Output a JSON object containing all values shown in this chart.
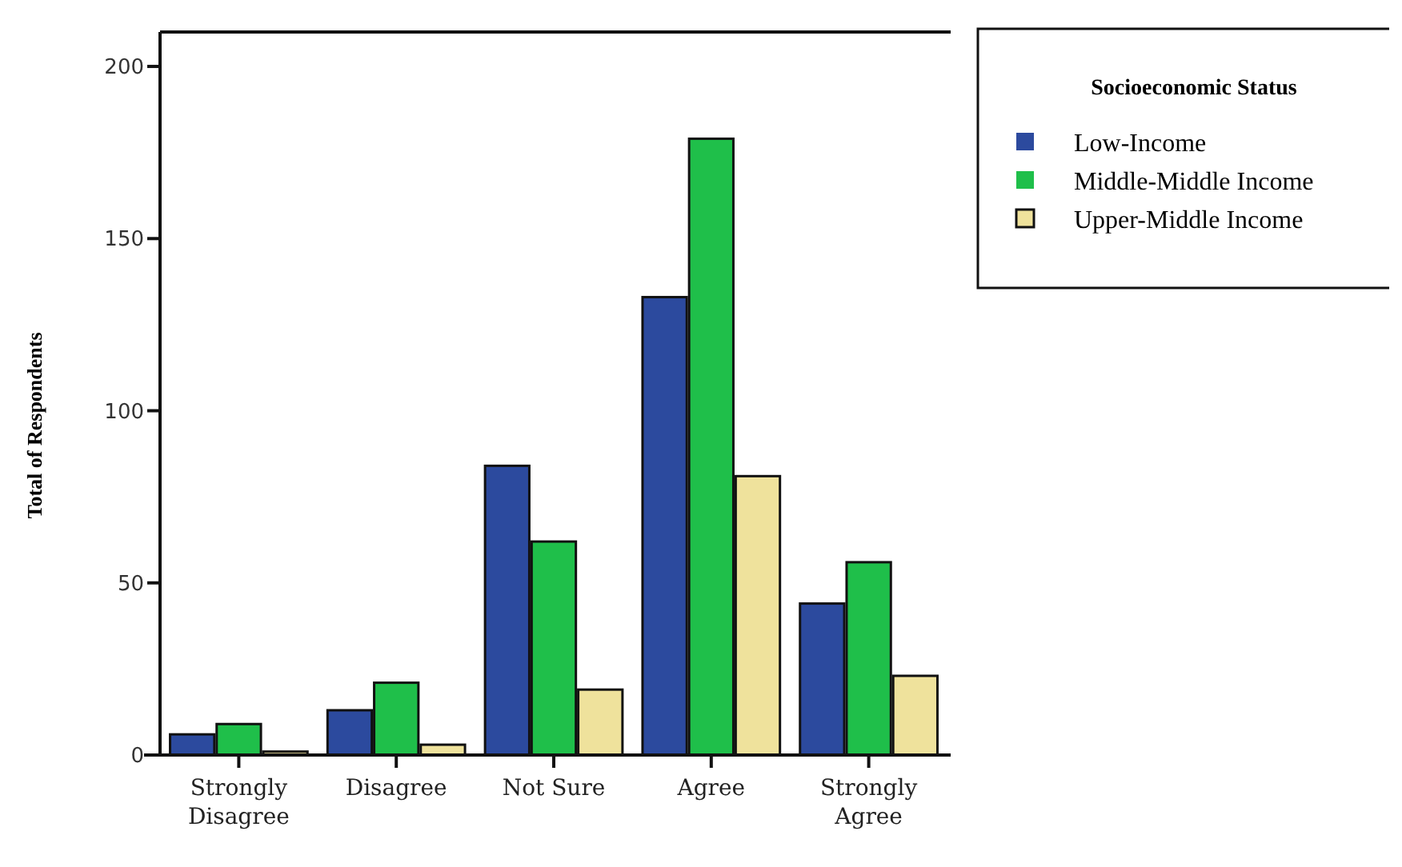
{
  "chart_data": {
    "type": "bar",
    "ylabel": "Total of Respondents",
    "legend_title": "Socioeconomic Status",
    "categories": [
      "Strongly\nDisagree",
      "Disagree",
      "Not Sure",
      "Agree",
      "Strongly\nAgree"
    ],
    "series": [
      {
        "name": "Low-Income",
        "color": "#2c4a9e",
        "values": [
          6,
          13,
          84,
          133,
          44
        ]
      },
      {
        "name": "Middle-Middle Income",
        "color": "#1fbf4a",
        "values": [
          9,
          21,
          62,
          179,
          56
        ]
      },
      {
        "name": "Upper-Middle Income",
        "color": "#efe29c",
        "values": [
          1,
          3,
          19,
          81,
          23
        ]
      }
    ],
    "ylim": [
      0,
      210
    ],
    "yticks": [
      0,
      50,
      100,
      150,
      200
    ],
    "grid": false,
    "legend": "top right"
  }
}
